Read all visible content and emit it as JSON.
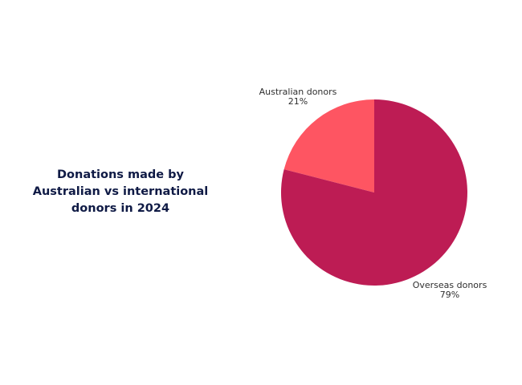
{
  "chart_data": {
    "type": "pie",
    "title": "Donations made by Australian vs international donors in 2024",
    "title_lines": [
      "Donations made by",
      "Australian vs international",
      "donors in 2024"
    ],
    "slices": [
      {
        "label": "Australian donors",
        "value": 21,
        "value_label": "21%",
        "color": "#fe5562"
      },
      {
        "label": "Overseas donors",
        "value": 79,
        "value_label": "79%",
        "color": "#bd1c54"
      }
    ],
    "xlabel": "",
    "ylabel": "",
    "legend": "none"
  }
}
